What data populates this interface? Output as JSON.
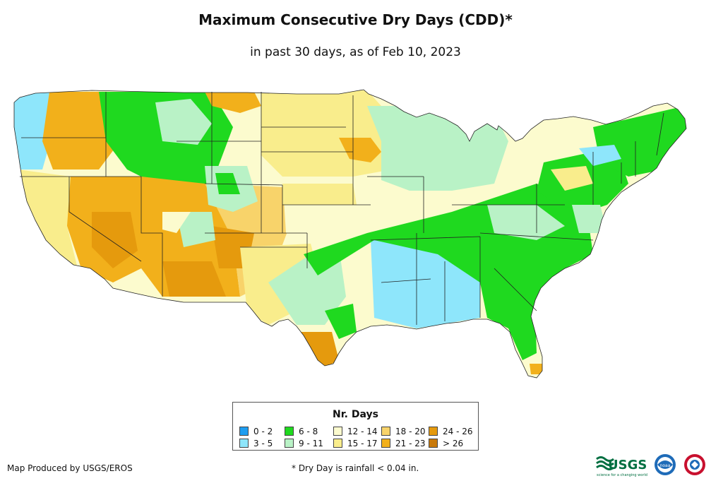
{
  "header": {
    "title": "Maximum Consecutive Dry Days (CDD)*",
    "subtitle": "in past 30 days, as of Feb 10, 2023"
  },
  "legend": {
    "title": "Nr. Days",
    "items": [
      {
        "label": "0 - 2",
        "color": "#1e9df0"
      },
      {
        "label": "3 - 5",
        "color": "#8ee6fb"
      },
      {
        "label": "6 - 8",
        "color": "#1fd91f"
      },
      {
        "label": "9 - 11",
        "color": "#b9f2c6"
      },
      {
        "label": "12 - 14",
        "color": "#fcfbce"
      },
      {
        "label": "15 - 17",
        "color": "#f9ed8c"
      },
      {
        "label": "18 - 20",
        "color": "#f8d36a"
      },
      {
        "label": "21 - 23",
        "color": "#f2b01b"
      },
      {
        "label": "24 - 26",
        "color": "#e59a0d"
      },
      {
        "label": "> 26",
        "color": "#c97a0b"
      }
    ]
  },
  "footer": {
    "produced_by": "Map Produced by USGS/EROS",
    "note": "* Dry Day is rainfall < 0.04 in."
  },
  "logos": {
    "usgs": "USGS",
    "usgs_tagline": "science for a changing world",
    "noaa": "noaa"
  },
  "map": {
    "regions": [
      {
        "name": "pacific-northwest-coast",
        "category": "3 - 5"
      },
      {
        "name": "oregon-washington-interior",
        "category": "21 - 23"
      },
      {
        "name": "idaho-montana-mountains",
        "category": "6 - 8"
      },
      {
        "name": "northern-plains",
        "category": "15 - 17"
      },
      {
        "name": "north-dakota-east",
        "category": "21 - 23"
      },
      {
        "name": "great-basin-southwest",
        "category": "21 - 23"
      },
      {
        "name": "arizona-new-mexico",
        "category": "24 - 26"
      },
      {
        "name": "california-coast",
        "category": "12 - 14"
      },
      {
        "name": "central-plains",
        "category": "12 - 14"
      },
      {
        "name": "texas-west",
        "category": "15 - 17"
      },
      {
        "name": "texas-east",
        "category": "9 - 11"
      },
      {
        "name": "south-texas",
        "category": "24 - 26"
      },
      {
        "name": "upper-midwest",
        "category": "9 - 11"
      },
      {
        "name": "tennessee-ohio-valley",
        "category": "6 - 8"
      },
      {
        "name": "lower-mississippi-valley",
        "category": "3 - 5"
      },
      {
        "name": "southeast",
        "category": "6 - 8"
      },
      {
        "name": "mid-atlantic",
        "category": "9 - 11"
      },
      {
        "name": "new-england",
        "category": "6 - 8"
      },
      {
        "name": "south-florida",
        "category": "21 - 23"
      }
    ]
  }
}
